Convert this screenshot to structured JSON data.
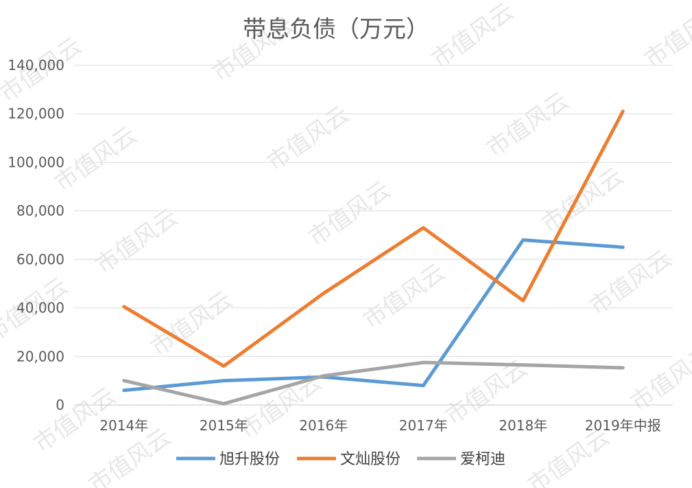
{
  "watermark_text": "市值风云",
  "chart_data": {
    "type": "line",
    "title": "带息负债（万元）",
    "xlabel": "",
    "ylabel": "",
    "categories": [
      "2014年",
      "2015年",
      "2016年",
      "2017年",
      "2018年",
      "2019年中报"
    ],
    "ylim": [
      0,
      140000
    ],
    "yticks": [
      0,
      20000,
      40000,
      60000,
      80000,
      100000,
      120000,
      140000
    ],
    "ytick_labels": [
      "0",
      "20,000",
      "40,000",
      "60,000",
      "80,000",
      "100,000",
      "120,000",
      "140,000"
    ],
    "grid": true,
    "legend_position": "bottom",
    "series": [
      {
        "name": "旭升股份",
        "color": "#5B9BD5",
        "values": [
          6000,
          10000,
          11500,
          8000,
          68000,
          65000
        ]
      },
      {
        "name": "文灿股份",
        "color": "#ED7D31",
        "values": [
          40500,
          16000,
          46000,
          73000,
          43000,
          121000
        ]
      },
      {
        "name": "爱柯迪",
        "color": "#A5A5A5",
        "values": [
          10000,
          500,
          12000,
          17500,
          16500,
          15300
        ]
      }
    ]
  }
}
